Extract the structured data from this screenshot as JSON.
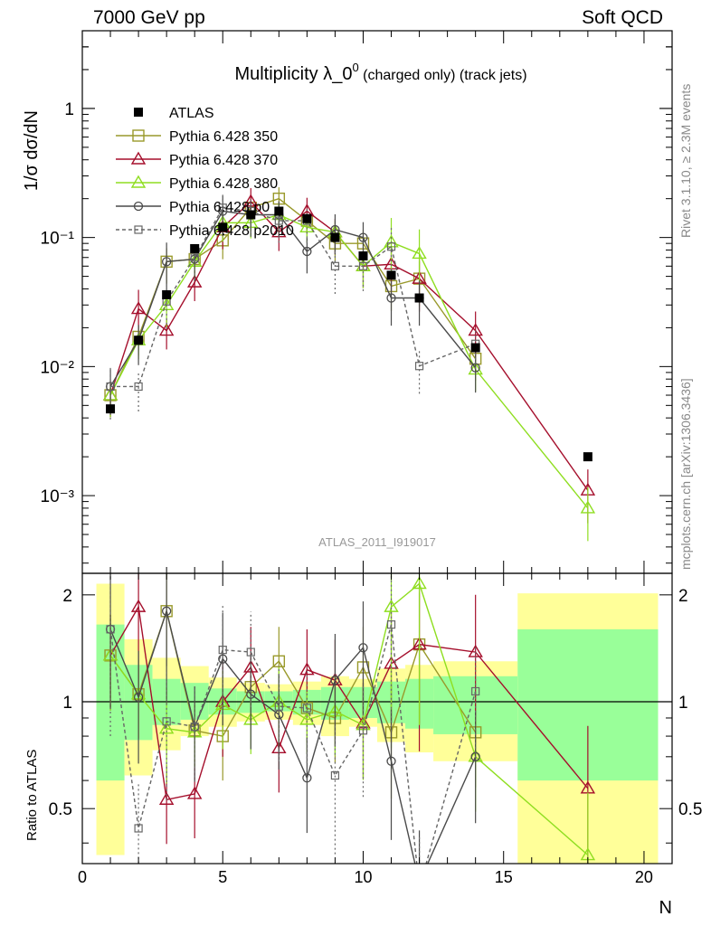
{
  "header": {
    "left": "7000 GeV pp",
    "right": "Soft QCD"
  },
  "side_labels": {
    "rivet": "Rivet 3.1.10, ≥ 2.3M events",
    "mcplots": "mcplots.cern.ch [arXiv:1306.3436]"
  },
  "chart_data": {
    "type": "scatter",
    "title": "Multiplicity λ_0",
    "title_sup": "0",
    "title_suffix": " (charged only) (track jets)",
    "ylabel": "1/σ dσ/dN",
    "ratio_ylabel": "Ratio to ATLAS",
    "xlabel": "N",
    "analysis_label": "ATLAS_2011_I919017",
    "xlim": [
      0,
      21
    ],
    "ylim": [
      0.00025,
      4
    ],
    "yscale": "log",
    "ratio_ylim": [
      0.35,
      2.3
    ],
    "x_ticks": [
      "0",
      "5",
      "10",
      "15",
      "20"
    ],
    "y_tick_labels": [
      "10⁻³",
      "10⁻²",
      "10⁻¹",
      "1"
    ],
    "ratio_tick_labels": [
      "0.5",
      "1",
      "2"
    ],
    "legend_position": "top-left",
    "colors": {
      "band_outer": "#ffff99",
      "band_inner": "#99ff99",
      "atlas": "#000000",
      "p350": "#99992b",
      "p370": "#a50f2c",
      "p380": "#8fde20",
      "pp0": "#4a4a4a",
      "pp2010": "#666666"
    },
    "data_points": {
      "name": "ATLAS",
      "x": [
        1,
        2,
        3,
        4,
        5,
        6,
        7,
        8,
        9,
        10,
        11,
        12,
        14,
        18
      ],
      "y": [
        0.0047,
        0.016,
        0.036,
        0.082,
        0.12,
        0.15,
        0.16,
        0.14,
        0.1,
        0.072,
        0.051,
        0.034,
        0.014,
        0.002
      ]
    },
    "ratio_bands": {
      "edges": [
        [
          0.5,
          1.5
        ],
        [
          1.5,
          2.5
        ],
        [
          2.5,
          3.5
        ],
        [
          3.5,
          4.5
        ],
        [
          4.5,
          5.5
        ],
        [
          5.5,
          6.5
        ],
        [
          6.5,
          7.5
        ],
        [
          7.5,
          8.5
        ],
        [
          8.5,
          9.5
        ],
        [
          9.5,
          10.5
        ],
        [
          10.5,
          11.5
        ],
        [
          11.5,
          12.5
        ],
        [
          12.5,
          15.5
        ],
        [
          15.5,
          20.5
        ]
      ],
      "outer": [
        [
          0.37,
          2.15
        ],
        [
          0.62,
          1.5
        ],
        [
          0.73,
          1.33
        ],
        [
          0.8,
          1.26
        ],
        [
          0.85,
          1.17
        ],
        [
          0.88,
          1.13
        ],
        [
          0.89,
          1.12
        ],
        [
          0.86,
          1.14
        ],
        [
          0.8,
          1.18
        ],
        [
          0.85,
          1.16
        ],
        [
          0.77,
          1.24
        ],
        [
          0.72,
          1.27
        ],
        [
          0.68,
          1.3
        ],
        [
          0.35,
          2.02
        ]
      ],
      "inner": [
        [
          0.6,
          1.65
        ],
        [
          0.78,
          1.27
        ],
        [
          0.86,
          1.16
        ],
        [
          0.89,
          1.13
        ],
        [
          0.92,
          1.09
        ],
        [
          0.93,
          1.07
        ],
        [
          0.94,
          1.07
        ],
        [
          0.92,
          1.08
        ],
        [
          0.89,
          1.1
        ],
        [
          0.9,
          1.1
        ],
        [
          0.87,
          1.14
        ],
        [
          0.84,
          1.16
        ],
        [
          0.81,
          1.18
        ],
        [
          0.6,
          1.6
        ]
      ]
    },
    "series": [
      {
        "name": "Pythia 6.428 350",
        "key": "p350",
        "marker": "square-open",
        "dash": false,
        "x": [
          1,
          2,
          3,
          4,
          5,
          6,
          7,
          8,
          9,
          10,
          11,
          12,
          14
        ],
        "y": [
          0.006,
          0.017,
          0.065,
          0.068,
          0.095,
          0.17,
          0.2,
          0.135,
          0.09,
          0.09,
          0.042,
          0.048,
          0.0115
        ],
        "ratio": [
          1.35,
          1.05,
          1.8,
          0.83,
          0.8,
          1.1,
          1.3,
          0.96,
          0.9,
          1.25,
          0.82,
          1.45,
          0.82
        ],
        "err": [
          0.3,
          0.25,
          0.3,
          0.2,
          0.25,
          0.2,
          0.25,
          0.2,
          0.25,
          0.3,
          0.35,
          0.4,
          0.3
        ]
      },
      {
        "name": "Pythia 6.428 370",
        "key": "p370",
        "marker": "triangle-open",
        "dash": false,
        "x": [
          1,
          2,
          3,
          4,
          5,
          6,
          7,
          8,
          9,
          10,
          11,
          12,
          14,
          18
        ],
        "y": [
          0.006,
          0.028,
          0.019,
          0.045,
          0.12,
          0.19,
          0.11,
          0.16,
          0.11,
          0.06,
          0.062,
          0.048,
          0.019,
          0.0011
        ],
        "ratio": [
          1.35,
          1.85,
          0.53,
          0.55,
          1.0,
          1.25,
          0.74,
          1.23,
          1.15,
          0.87,
          1.28,
          1.45,
          1.38,
          0.57
        ],
        "err": [
          0.3,
          0.45,
          0.25,
          0.25,
          0.3,
          0.3,
          0.25,
          0.3,
          0.3,
          0.3,
          0.4,
          0.5,
          0.45,
          0.5
        ]
      },
      {
        "name": "Pythia 6.428 380",
        "key": "p380",
        "marker": "triangle-open",
        "dash": false,
        "x": [
          1,
          2,
          3,
          4,
          5,
          6,
          7,
          8,
          9,
          10,
          11,
          12,
          14,
          18
        ],
        "y": [
          0.006,
          0.016,
          0.03,
          0.065,
          0.13,
          0.13,
          0.15,
          0.12,
          0.11,
          0.06,
          0.092,
          0.075,
          0.0095,
          0.0008
        ],
        "ratio": [
          1.35,
          1.05,
          0.84,
          0.82,
          0.98,
          0.89,
          1.0,
          0.89,
          0.94,
          0.86,
          1.85,
          2.15,
          0.7,
          0.37
        ],
        "err": [
          0.3,
          0.25,
          0.3,
          0.2,
          0.25,
          0.2,
          0.25,
          0.2,
          0.25,
          0.3,
          0.6,
          0.6,
          0.3,
          0.5
        ]
      },
      {
        "name": "Pythia 6.428 p0",
        "key": "pp0",
        "marker": "circle-open",
        "dash": false,
        "x": [
          1,
          2,
          3,
          4,
          5,
          6,
          7,
          8,
          9,
          10,
          11,
          12,
          14
        ],
        "y": [
          0.007,
          0.016,
          0.065,
          0.068,
          0.16,
          0.15,
          0.15,
          0.078,
          0.115,
          0.1,
          0.034,
          0.034,
          0.0098
        ],
        "ratio": [
          1.6,
          1.03,
          1.8,
          0.85,
          1.32,
          1.05,
          0.92,
          0.61,
          1.15,
          1.42,
          0.68,
          0.31,
          0.7
        ],
        "err": [
          0.4,
          0.35,
          0.45,
          0.3,
          0.35,
          0.3,
          0.3,
          0.3,
          0.35,
          0.35,
          0.4,
          0.4,
          0.35
        ]
      },
      {
        "name": "Pythia 6.428 p2010",
        "key": "pp2010",
        "marker": "square-open-small",
        "dash": true,
        "x": [
          1,
          2,
          3,
          4,
          5,
          6,
          7,
          8,
          9,
          10,
          11,
          12,
          14
        ],
        "y": [
          0.007,
          0.007,
          0.032,
          0.07,
          0.17,
          0.16,
          0.135,
          0.135,
          0.06,
          0.06,
          0.085,
          0.0101,
          0.015
        ],
        "ratio": [
          1.6,
          0.44,
          0.88,
          0.85,
          1.4,
          1.38,
          0.97,
          0.96,
          0.62,
          0.83,
          1.65,
          0.3,
          1.07
        ],
        "err": [
          0.5,
          0.35,
          0.4,
          0.3,
          0.35,
          0.3,
          0.3,
          0.3,
          0.4,
          0.35,
          0.5,
          0.4,
          0.35
        ]
      }
    ]
  }
}
